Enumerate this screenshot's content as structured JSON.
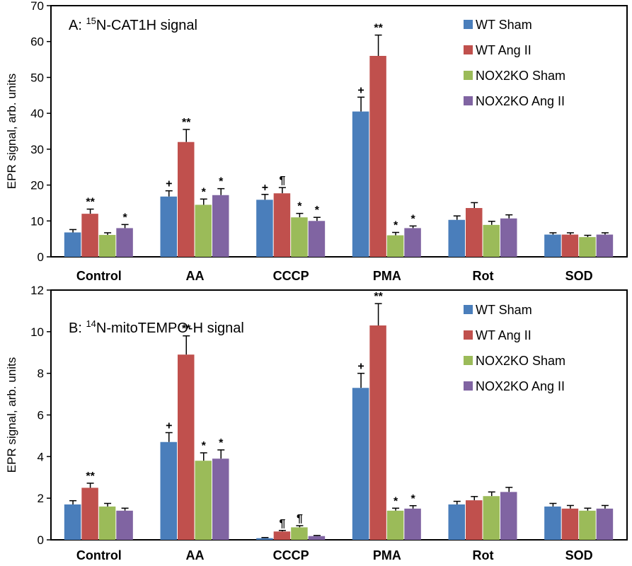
{
  "chart_data": [
    {
      "type": "bar",
      "panel_letter": "A:",
      "title_sup": "15",
      "title_main": "N-CAT1H signal",
      "ylabel": "EPR signal, arb. units",
      "ylim": [
        0,
        70
      ],
      "yticks": [
        0,
        10,
        20,
        30,
        40,
        50,
        60,
        70
      ],
      "grid": false,
      "legend_position": "top-right",
      "categories": [
        "Control",
        "AA",
        "CCCP",
        "PMA",
        "Rot",
        "SOD"
      ],
      "series": [
        {
          "name": "WT Sham",
          "color": "#4a7ebb",
          "values": [
            6.8,
            16.8,
            15.9,
            40.5,
            10.3,
            6.2
          ],
          "errors": [
            0.8,
            1.6,
            1.5,
            4.0,
            1.1,
            0.5
          ],
          "annotations": [
            "",
            "+",
            "+",
            "+",
            "",
            ""
          ]
        },
        {
          "name": "WT Ang II",
          "color": "#c0504d",
          "values": [
            12.0,
            32.0,
            17.7,
            56.0,
            13.6,
            6.2
          ],
          "errors": [
            1.3,
            3.5,
            1.6,
            5.8,
            1.5,
            0.5
          ],
          "annotations": [
            "**",
            "**",
            "¶",
            "**",
            "",
            ""
          ]
        },
        {
          "name": "NOX2KO Sham",
          "color": "#9bbb59",
          "values": [
            6.1,
            14.5,
            11.0,
            6.0,
            8.9,
            5.5
          ],
          "errors": [
            0.6,
            1.6,
            1.1,
            0.8,
            1.0,
            0.5
          ],
          "annotations": [
            "",
            "*",
            "*",
            "*",
            "",
            ""
          ]
        },
        {
          "name": "NOX2KO Ang II",
          "color": "#8064a2",
          "values": [
            8.0,
            17.2,
            10.0,
            8.0,
            10.7,
            6.2
          ],
          "errors": [
            1.0,
            1.8,
            1.0,
            0.6,
            1.0,
            0.5
          ],
          "annotations": [
            "*",
            "*",
            "*",
            "*",
            "",
            ""
          ]
        }
      ]
    },
    {
      "type": "bar",
      "panel_letter": "B:",
      "title_sup": "14",
      "title_main": "N-mitoTEMPO-H signal",
      "ylabel": "EPR signal, arb. units",
      "ylim": [
        0,
        12
      ],
      "yticks": [
        0,
        2,
        4,
        6,
        8,
        10,
        12
      ],
      "grid": false,
      "legend_position": "top-right",
      "categories": [
        "Control",
        "AA",
        "CCCP",
        "PMA",
        "Rot",
        "SOD"
      ],
      "series": [
        {
          "name": "WT Sham",
          "color": "#4a7ebb",
          "values": [
            1.7,
            4.7,
            0.08,
            7.3,
            1.7,
            1.6
          ],
          "errors": [
            0.18,
            0.45,
            0.03,
            0.7,
            0.15,
            0.15
          ],
          "annotations": [
            "",
            "+",
            "",
            "+",
            "",
            ""
          ]
        },
        {
          "name": "WT Ang II",
          "color": "#c0504d",
          "values": [
            2.5,
            8.9,
            0.4,
            10.3,
            1.9,
            1.5
          ],
          "errors": [
            0.22,
            0.9,
            0.05,
            1.05,
            0.18,
            0.15
          ],
          "annotations": [
            "**",
            "**",
            "¶",
            "**",
            "",
            ""
          ]
        },
        {
          "name": "NOX2KO Sham",
          "color": "#9bbb59",
          "values": [
            1.6,
            3.8,
            0.6,
            1.4,
            2.1,
            1.4
          ],
          "errors": [
            0.15,
            0.38,
            0.08,
            0.12,
            0.2,
            0.12
          ],
          "annotations": [
            "",
            "*",
            "¶",
            "*",
            "",
            ""
          ]
        },
        {
          "name": "NOX2KO Ang II",
          "color": "#8064a2",
          "values": [
            1.4,
            3.9,
            0.18,
            1.5,
            2.3,
            1.5
          ],
          "errors": [
            0.12,
            0.42,
            0.03,
            0.14,
            0.22,
            0.15
          ],
          "annotations": [
            "",
            "*",
            "",
            "*",
            "",
            ""
          ]
        }
      ]
    }
  ]
}
